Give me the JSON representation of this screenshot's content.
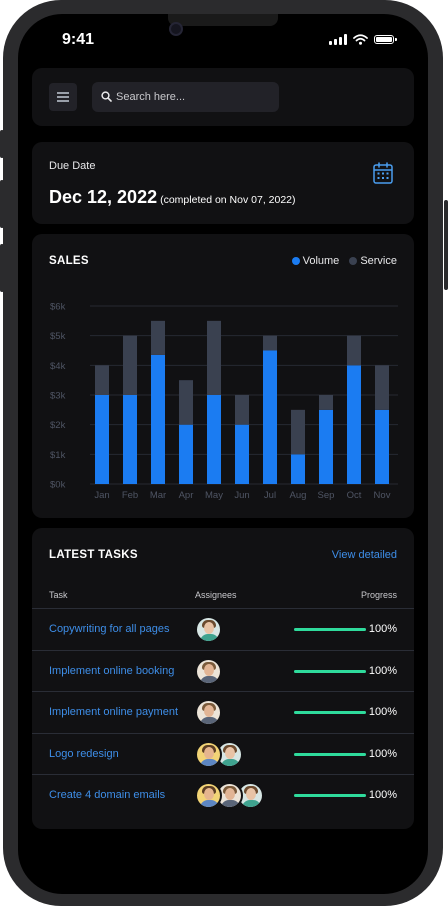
{
  "status_bar": {
    "time": "9:41"
  },
  "header": {
    "search_placeholder": "Search here..."
  },
  "due": {
    "label": "Due Date",
    "date": "Dec 12, 2022",
    "note": "(completed on Nov 07, 2022)"
  },
  "sales": {
    "title": "SALES",
    "legend": {
      "volume": "Volume",
      "service": "Service"
    }
  },
  "colors": {
    "volume": "#1b7cf2",
    "service": "#3a4150",
    "progress": "#2fdb9c",
    "link": "#3e8ee8"
  },
  "chart_data": {
    "type": "bar",
    "stacked": true,
    "categories": [
      "Jan",
      "Feb",
      "Mar",
      "Apr",
      "May",
      "Jun",
      "Jul",
      "Aug",
      "Sep",
      "Oct",
      "Nov"
    ],
    "series": [
      {
        "name": "Volume",
        "values": [
          3000,
          3000,
          4350,
          2000,
          3000,
          2000,
          4500,
          1000,
          2500,
          4000,
          2500
        ]
      },
      {
        "name": "Service",
        "values": [
          1000,
          2000,
          1150,
          1500,
          2500,
          1000,
          500,
          1500,
          500,
          1000,
          1500
        ]
      }
    ],
    "y_ticks": [
      "$0k",
      "$1k",
      "$2k",
      "$3k",
      "$4k",
      "$5k",
      "$6k"
    ],
    "ylim": [
      0,
      6000
    ],
    "grid": true,
    "legend_position": "top-right"
  },
  "tasks": {
    "title": "LATEST TASKS",
    "view_link": "View detailed",
    "columns": {
      "task": "Task",
      "assignees": "Assignees",
      "progress": "Progress"
    },
    "rows": [
      {
        "name": "Copywriting for all pages",
        "assignees": [
          "woman-teal"
        ],
        "progress": 1.0,
        "progress_label": "100%"
      },
      {
        "name": "Implement online booking",
        "assignees": [
          "man-beige"
        ],
        "progress": 1.0,
        "progress_label": "100%"
      },
      {
        "name": "Implement online payment",
        "assignees": [
          "man-beige"
        ],
        "progress": 1.0,
        "progress_label": "100%"
      },
      {
        "name": "Logo redesign",
        "assignees": [
          "woman-yellow",
          "woman-teal"
        ],
        "progress": 1.0,
        "progress_label": "100%"
      },
      {
        "name": "Create 4 domain emails",
        "assignees": [
          "woman-yellow",
          "man-beige",
          "woman-teal"
        ],
        "progress": 1.0,
        "progress_label": "100%"
      }
    ]
  }
}
